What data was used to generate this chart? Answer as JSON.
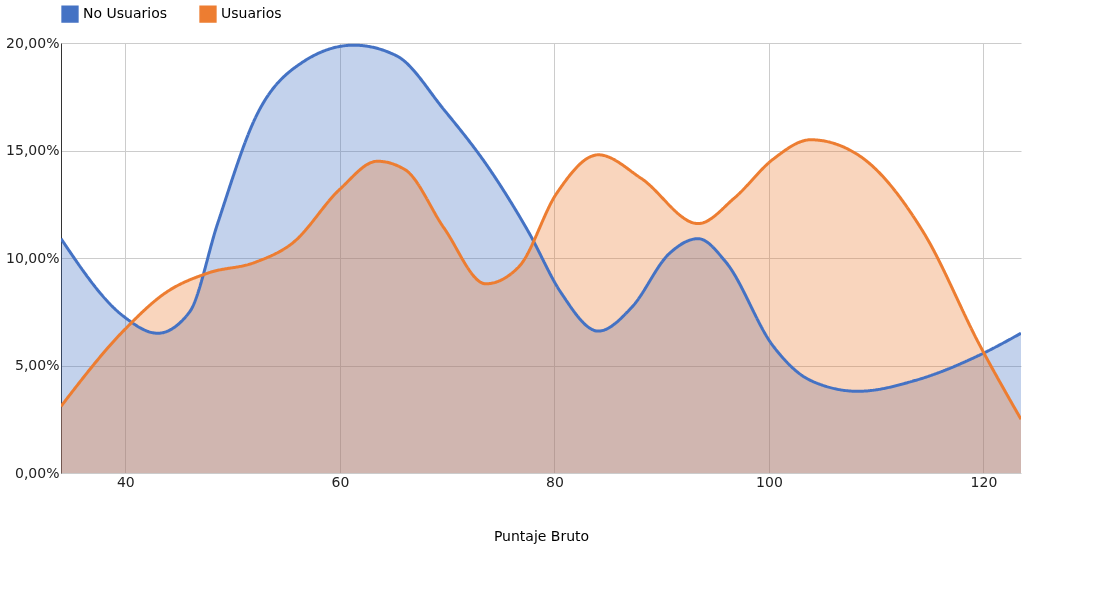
{
  "chart_data": {
    "type": "area",
    "xlabel": "Puntaje Bruto",
    "xlim": [
      34,
      123.5
    ],
    "xticks": [
      40,
      60,
      80,
      100,
      120
    ],
    "ylim": [
      0,
      20
    ],
    "yticks": [
      {
        "value": 0,
        "label": "0,00%"
      },
      {
        "value": 5,
        "label": "5,00%"
      },
      {
        "value": 10,
        "label": "10,00%"
      },
      {
        "value": 15,
        "label": "15,00%"
      },
      {
        "value": 20,
        "label": "20,00%"
      }
    ],
    "grid": true,
    "legend": "top",
    "marker": "none",
    "line_style": "solid",
    "series": [
      {
        "name": "No Usuarios",
        "color": "#4472c4",
        "x": [
          34,
          39.8,
          43,
          46,
          48.6,
          52.2,
          56.5,
          61.3,
          65.3,
          69.7,
          74,
          77.6,
          80.6,
          84.1,
          87.2,
          90.7,
          93.4,
          96,
          100.4,
          103.9,
          108.3,
          113.6,
          119.7,
          123.5
        ],
        "values": [
          10.9,
          7.3,
          6.5,
          7.5,
          11.6,
          16.6,
          19.1,
          19.9,
          19.4,
          16.9,
          14.1,
          11.2,
          8.4,
          6.6,
          7.7,
          10.2,
          10.9,
          9.8,
          5.9,
          4.3,
          3.8,
          4.3,
          5.5,
          6.5
        ]
      },
      {
        "name": "Usuarios",
        "color": "#ed7d31",
        "x": [
          34,
          39.8,
          43.8,
          47.7,
          52.1,
          55.6,
          60,
          63.5,
          66.1,
          69.7,
          73.6,
          76.7,
          80.2,
          84.1,
          88.1,
          93.4,
          96.8,
          100.4,
          103.9,
          108.3,
          114.4,
          119.7,
          123.5
        ],
        "values": [
          3.1,
          6.6,
          8.4,
          9.3,
          9.8,
          10.7,
          13.2,
          14.5,
          14.1,
          11.4,
          8.8,
          9.6,
          13,
          14.8,
          13.7,
          11.6,
          12.8,
          14.6,
          15.5,
          14.8,
          11.2,
          5.9,
          2.5
        ]
      }
    ]
  }
}
